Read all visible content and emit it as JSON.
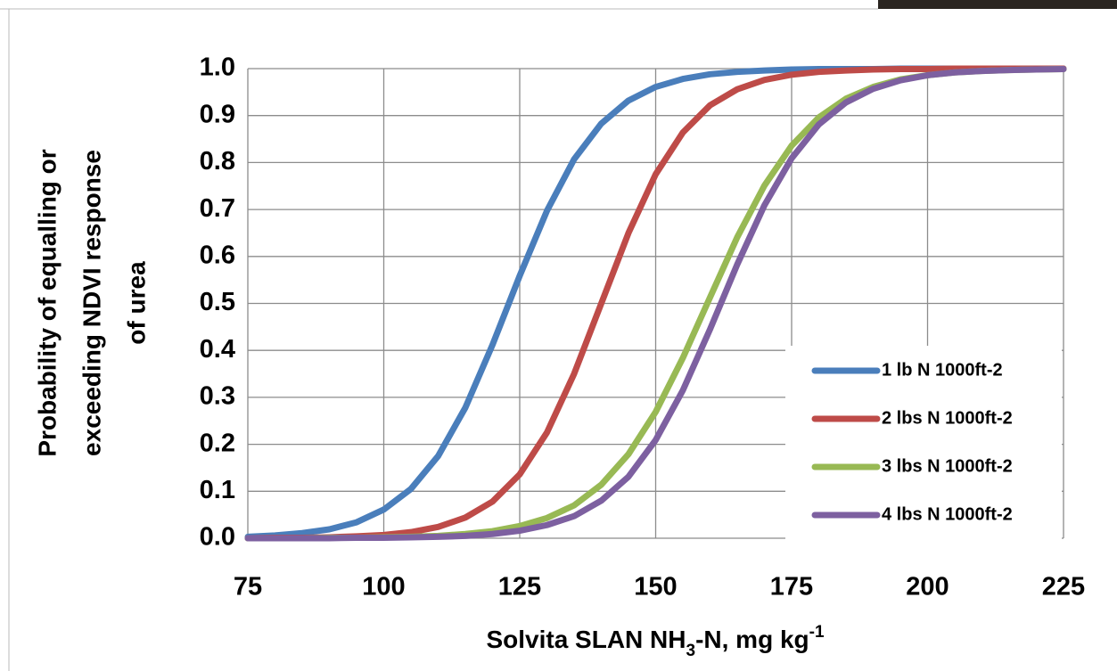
{
  "chart_data": {
    "type": "line",
    "ylabel": [
      "Probability of equalling or",
      "exceeding NDVI response",
      "of urea"
    ],
    "xlabel_parts": [
      "Solvita SLAN NH",
      "3",
      "-N, mg kg",
      "-1"
    ],
    "x": [
      75,
      80,
      85,
      90,
      95,
      100,
      105,
      110,
      115,
      120,
      125,
      130,
      135,
      140,
      145,
      150,
      155,
      160,
      165,
      170,
      175,
      180,
      185,
      190,
      195,
      200,
      205,
      210,
      215,
      220,
      225
    ],
    "series": [
      {
        "name": "1 lb N 1000ft-2",
        "color": "#4a7ebb",
        "values": [
          0.003,
          0.006,
          0.011,
          0.019,
          0.034,
          0.061,
          0.105,
          0.175,
          0.278,
          0.412,
          0.559,
          0.697,
          0.807,
          0.883,
          0.932,
          0.961,
          0.978,
          0.988,
          0.993,
          0.996,
          0.998,
          0.999,
          0.999,
          0.999,
          1.0,
          1.0,
          1.0,
          1.0,
          1.0,
          1.0,
          1.0
        ]
      },
      {
        "name": "2 lbs N 1000ft-2",
        "color": "#be4b48",
        "values": [
          0.0,
          0.001,
          0.001,
          0.002,
          0.004,
          0.007,
          0.013,
          0.024,
          0.044,
          0.078,
          0.136,
          0.225,
          0.35,
          0.5,
          0.65,
          0.775,
          0.864,
          0.922,
          0.956,
          0.976,
          0.987,
          0.993,
          0.996,
          0.998,
          0.999,
          0.999,
          1.0,
          1.0,
          1.0,
          1.0,
          1.0
        ]
      },
      {
        "name": "3 lbs N 1000ft-2",
        "color": "#98b954",
        "values": [
          0.0,
          0.0,
          0.0,
          0.001,
          0.001,
          0.002,
          0.003,
          0.005,
          0.009,
          0.015,
          0.026,
          0.043,
          0.07,
          0.114,
          0.179,
          0.269,
          0.384,
          0.513,
          0.641,
          0.751,
          0.836,
          0.896,
          0.936,
          0.961,
          0.977,
          0.986,
          0.992,
          0.995,
          0.997,
          0.998,
          0.999
        ]
      },
      {
        "name": "4 lbs N 1000ft-2",
        "color": "#7d60a0",
        "values": [
          0.0,
          0.0,
          0.0,
          0.0,
          0.001,
          0.001,
          0.002,
          0.003,
          0.005,
          0.009,
          0.016,
          0.028,
          0.047,
          0.08,
          0.131,
          0.209,
          0.315,
          0.445,
          0.583,
          0.709,
          0.809,
          0.881,
          0.928,
          0.957,
          0.975,
          0.986,
          0.992,
          0.995,
          0.997,
          0.998,
          0.999
        ]
      }
    ],
    "xlim": [
      75,
      225
    ],
    "xticks": [
      75,
      100,
      125,
      150,
      175,
      200,
      225
    ],
    "ylim": [
      0,
      1
    ],
    "yticks": [
      {
        "value": 0,
        "label": "0.0"
      },
      0.1,
      0.2,
      0.3,
      0.4,
      0.5,
      0.6,
      0.7,
      0.8,
      0.9,
      {
        "value": 1,
        "label": "1.0"
      }
    ],
    "grid": true,
    "legend": "lower right"
  }
}
